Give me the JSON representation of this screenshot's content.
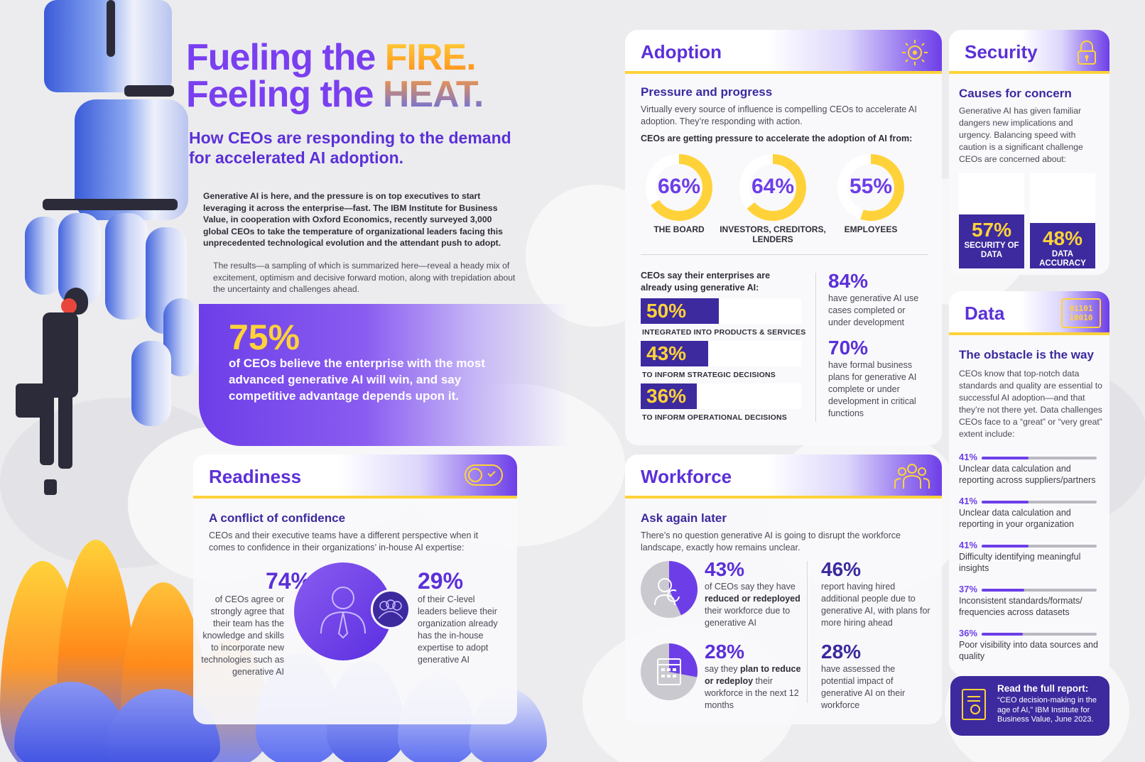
{
  "header": {
    "line1_prefix": "Fueling the ",
    "line1_highlight": "FIRE.",
    "line2_prefix": "Feeling the ",
    "line2_highlight": "HEAT.",
    "subtitle_1": "How CEOs are responding to the demand",
    "subtitle_2": "for accelerated AI adoption.",
    "intro_bold": "Generative AI is here, and the pressure is on top executives to start leveraging it across the enterprise—fast. The IBM Institute for Business Value, in cooperation with Oxford Economics, recently surveyed 3,000 global CEOs to take the temperature of organizational leaders facing this unprecedented technological evolution and the attendant push to adopt.",
    "intro_regular": "The results—a sampling of which is summarized here—reveal a heady mix of excitement, optimism and decisive forward motion, along with trepidation about the uncertainty and challenges ahead."
  },
  "hero_stat": {
    "value": "75%",
    "text": "of CEOs believe the enterprise with the most advanced generative AI will win, and say competitive advantage depends upon it."
  },
  "adoption": {
    "title": "Adoption",
    "icon": "target-sun-icon",
    "section_title": "Pressure and progress",
    "description": "Virtually every source of influence is compelling CEOs to accelerate AI adoption. They’re responding with action.",
    "pressure_label": "CEOs are getting pressure to accelerate the adoption of AI from:",
    "donuts": [
      {
        "value": "66%",
        "fraction": 0.66,
        "label": "THE BOARD"
      },
      {
        "value": "64%",
        "fraction": 0.64,
        "label": "INVESTORS, CREDITORS, LENDERS"
      },
      {
        "value": "55%",
        "fraction": 0.55,
        "label": "EMPLOYEES"
      }
    ],
    "using_label": "CEOs say their enterprises are already using generative AI:",
    "bars": [
      {
        "value": "50%",
        "fraction": 0.5,
        "label": "INTEGRATED INTO PRODUCTS & SERVICES"
      },
      {
        "value": "43%",
        "fraction": 0.43,
        "label": "TO INFORM STRATEGIC DECISIONS"
      },
      {
        "value": "36%",
        "fraction": 0.36,
        "label": "TO INFORM OPERATIONAL DECISIONS"
      }
    ],
    "side_stats": [
      {
        "value": "84%",
        "text": "have generative AI use cases completed or under development"
      },
      {
        "value": "70%",
        "text": "have formal business plans for generative AI complete or under development in critical functions"
      }
    ]
  },
  "security": {
    "title": "Security",
    "icon": "padlock-icon",
    "section_title": "Causes for concern",
    "description": "Generative AI has given familiar dangers new implications and urgency. Balancing speed with caution is a significant challenge CEOs are concerned about:",
    "stats": [
      {
        "value": "57%",
        "fraction": 0.57,
        "label": "SECURITY OF DATA"
      },
      {
        "value": "48%",
        "fraction": 0.48,
        "label": "DATA ACCURACY"
      }
    ]
  },
  "data": {
    "title": "Data",
    "icon": "binary-screen-icon",
    "icon_text_1": "01101",
    "icon_text_2": "10010",
    "section_title": "The obstacle is the way",
    "description": "CEOs know that top-notch data standards and quality are essential to successful AI adoption—and that they’re not there yet. Data challenges CEOs face to a “great” or “very great” extent include:",
    "items": [
      {
        "value": "41%",
        "fraction": 0.41,
        "text": "Unclear data calculation and reporting across suppliers/partners"
      },
      {
        "value": "41%",
        "fraction": 0.41,
        "text": "Unclear data calculation and reporting in your organization"
      },
      {
        "value": "41%",
        "fraction": 0.41,
        "text": "Difficulty identifying meaningful insights"
      },
      {
        "value": "37%",
        "fraction": 0.37,
        "text": "Inconsistent standards/formats/ frequencies across datasets"
      },
      {
        "value": "36%",
        "fraction": 0.36,
        "text": "Poor visibility into data sources and quality"
      }
    ]
  },
  "readiness": {
    "title": "Readiness",
    "icon": "toggle-check-icon",
    "section_title": "A conflict of confidence",
    "description": "CEOs and their executive teams have a different perspective when it comes to confidence in their organizations’ in-house AI expertise:",
    "left_value": "74%",
    "left_text": "of CEOs agree or strongly agree that their team has the knowledge and skills to incorporate new technologies such as generative AI",
    "right_value": "29%",
    "right_text": "of their C-level leaders believe their organization already has the in-house expertise to adopt generative AI"
  },
  "workforce": {
    "title": "Workforce",
    "icon": "team-group-icon",
    "section_title": "Ask again later",
    "description": "There’s no question generative AI is going to disrupt the workforce landscape, exactly how remains unclear.",
    "stat1_value": "43%",
    "stat1_fraction": 0.43,
    "stat1_pre": "of CEOs say they have ",
    "stat1_bold": "reduced or redeployed",
    "stat1_post": " their workforce due to generative AI",
    "stat2_value": "46%",
    "stat2_text": "report having hired additional people due to generative AI, with plans for more hiring ahead",
    "stat3_value": "28%",
    "stat3_fraction": 0.28,
    "stat3_pre": "say they ",
    "stat3_bold": "plan to reduce or redeploy",
    "stat3_post": " their workforce in the next 12 months",
    "stat4_value": "28%",
    "stat4_text": "have assessed the potential impact of generative AI on their workforce"
  },
  "report": {
    "title": "Read the full report:",
    "citation": "“CEO decision-making in the age of AI,” IBM Institute for Business Value, June 2023.",
    "icon": "document-search-icon"
  },
  "colors": {
    "purple": "#6d3ee8",
    "navy": "#3d2a9e",
    "yellow": "#ffd23a",
    "orange": "#ff8a1a"
  }
}
